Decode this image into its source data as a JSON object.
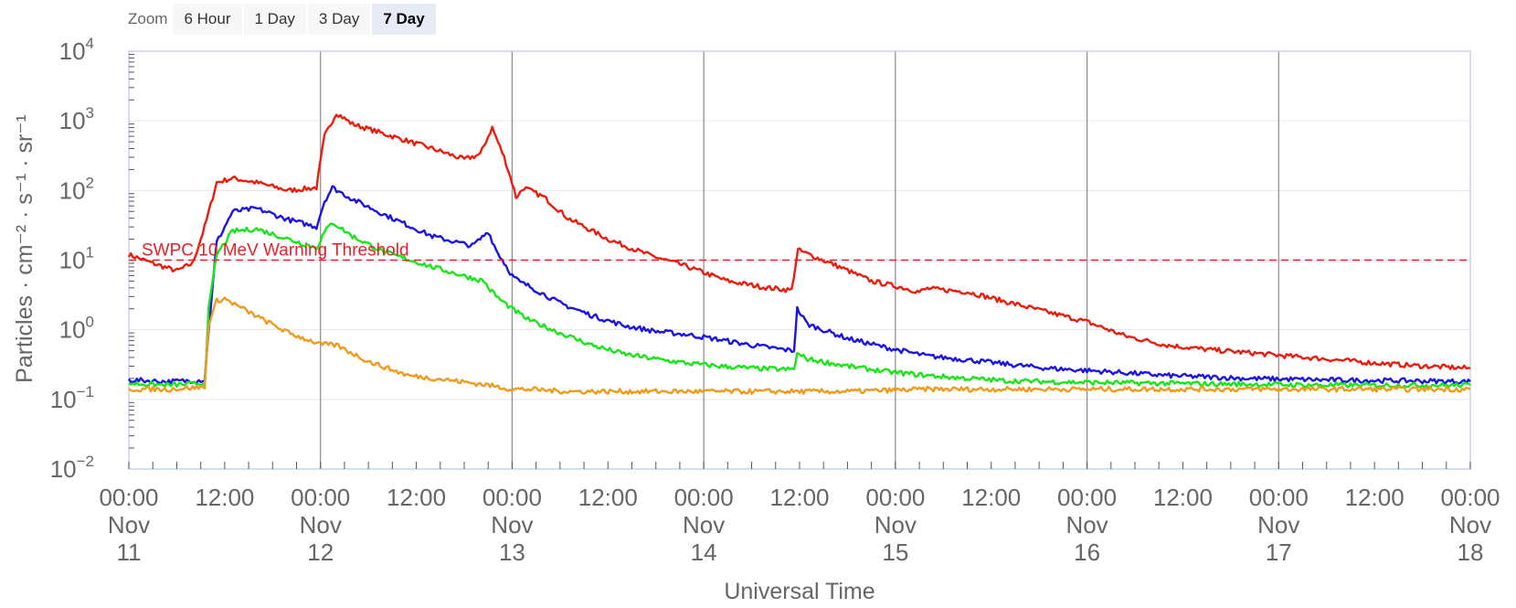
{
  "zoom": {
    "label": "Zoom",
    "buttons": [
      "6 Hour",
      "1 Day",
      "3 Day",
      "7 Day"
    ],
    "selected": "7 Day"
  },
  "chart_data": {
    "type": "line",
    "title": "",
    "xlabel": "Universal Time",
    "ylabel": "Particles · cm⁻² · s⁻¹ · sr⁻¹",
    "y_scale": "log",
    "ylim": [
      0.01,
      10000
    ],
    "y_ticks": [
      {
        "base": "10",
        "exp": "4"
      },
      {
        "base": "10",
        "exp": "3"
      },
      {
        "base": "10",
        "exp": "2"
      },
      {
        "base": "10",
        "exp": "1"
      },
      {
        "base": "10",
        "exp": "0"
      },
      {
        "base": "10",
        "exp": "−1"
      },
      {
        "base": "10",
        "exp": "−2"
      }
    ],
    "xlim_hours": [
      0,
      168
    ],
    "x_ticks": [
      {
        "time": "00:00",
        "month": "Nov",
        "day": "11"
      },
      {
        "time": "12:00",
        "month": "",
        "day": ""
      },
      {
        "time": "00:00",
        "month": "Nov",
        "day": "12"
      },
      {
        "time": "12:00",
        "month": "",
        "day": ""
      },
      {
        "time": "00:00",
        "month": "Nov",
        "day": "13"
      },
      {
        "time": "12:00",
        "month": "",
        "day": ""
      },
      {
        "time": "00:00",
        "month": "Nov",
        "day": "14"
      },
      {
        "time": "12:00",
        "month": "",
        "day": ""
      },
      {
        "time": "00:00",
        "month": "Nov",
        "day": "15"
      },
      {
        "time": "12:00",
        "month": "",
        "day": ""
      },
      {
        "time": "00:00",
        "month": "Nov",
        "day": "16"
      },
      {
        "time": "12:00",
        "month": "",
        "day": ""
      },
      {
        "time": "00:00",
        "month": "Nov",
        "day": "17"
      },
      {
        "time": "12:00",
        "month": "",
        "day": ""
      },
      {
        "time": "00:00",
        "month": "Nov",
        "day": "18"
      }
    ],
    "threshold": {
      "label": "SWPC 10 MeV Warning Threshold",
      "value": 10,
      "color": "#e8202a"
    },
    "series": [
      {
        "color": "#ee1c0d",
        "points": [
          [
            0,
            12
          ],
          [
            3,
            9
          ],
          [
            6,
            7
          ],
          [
            8,
            9
          ],
          [
            9.5,
            30
          ],
          [
            11,
            130
          ],
          [
            13,
            150
          ],
          [
            16,
            130
          ],
          [
            20,
            100
          ],
          [
            23.5,
            110
          ],
          [
            24.5,
            600
          ],
          [
            26,
            1300
          ],
          [
            28,
            900
          ],
          [
            32,
            650
          ],
          [
            38,
            400
          ],
          [
            42,
            280
          ],
          [
            44,
            330
          ],
          [
            45.5,
            800
          ],
          [
            47,
            300
          ],
          [
            48,
            130
          ],
          [
            48.5,
            80
          ],
          [
            49.5,
            110
          ],
          [
            52,
            80
          ],
          [
            55,
            40
          ],
          [
            60,
            20
          ],
          [
            65,
            12
          ],
          [
            70,
            8
          ],
          [
            75,
            5
          ],
          [
            80,
            4
          ],
          [
            83,
            3.7
          ],
          [
            83.8,
            14
          ],
          [
            86,
            11
          ],
          [
            89,
            8
          ],
          [
            93,
            5
          ],
          [
            97,
            4
          ],
          [
            99,
            3.5
          ],
          [
            100,
            3.9
          ],
          [
            105,
            3.5
          ],
          [
            110,
            2.5
          ],
          [
            115,
            1.8
          ],
          [
            120,
            1.3
          ],
          [
            125,
            0.8
          ],
          [
            130,
            0.6
          ],
          [
            135,
            0.52
          ],
          [
            140,
            0.47
          ],
          [
            145,
            0.42
          ],
          [
            150,
            0.38
          ],
          [
            155,
            0.34
          ],
          [
            160,
            0.31
          ],
          [
            165,
            0.29
          ],
          [
            168,
            0.28
          ]
        ]
      },
      {
        "color": "#1c13e6",
        "points": [
          [
            0,
            0.19
          ],
          [
            5,
            0.18
          ],
          [
            9.5,
            0.19
          ],
          [
            10,
            1
          ],
          [
            11,
            18
          ],
          [
            13,
            50
          ],
          [
            16,
            55
          ],
          [
            20,
            38
          ],
          [
            23.5,
            30
          ],
          [
            24.5,
            70
          ],
          [
            25.5,
            110
          ],
          [
            28,
            75
          ],
          [
            32,
            45
          ],
          [
            38,
            22
          ],
          [
            43,
            16
          ],
          [
            44,
            20
          ],
          [
            45,
            26
          ],
          [
            46,
            14
          ],
          [
            48,
            6
          ],
          [
            49,
            4.8
          ],
          [
            50,
            4.3
          ],
          [
            54,
            2.4
          ],
          [
            58,
            1.6
          ],
          [
            62,
            1.15
          ],
          [
            66,
            0.95
          ],
          [
            70,
            0.85
          ],
          [
            74,
            0.72
          ],
          [
            78,
            0.6
          ],
          [
            82,
            0.52
          ],
          [
            83.3,
            0.5
          ],
          [
            83.7,
            2.0
          ],
          [
            85,
            1.2
          ],
          [
            90,
            0.75
          ],
          [
            95,
            0.55
          ],
          [
            100,
            0.42
          ],
          [
            105,
            0.37
          ],
          [
            110,
            0.32
          ],
          [
            115,
            0.28
          ],
          [
            120,
            0.26
          ],
          [
            125,
            0.24
          ],
          [
            130,
            0.22
          ],
          [
            135,
            0.21
          ],
          [
            140,
            0.2
          ],
          [
            150,
            0.19
          ],
          [
            160,
            0.185
          ],
          [
            168,
            0.18
          ]
        ]
      },
      {
        "color": "#19e619",
        "points": [
          [
            0,
            0.17
          ],
          [
            5,
            0.16
          ],
          [
            9.5,
            0.17
          ],
          [
            10,
            2
          ],
          [
            11,
            12
          ],
          [
            13,
            26
          ],
          [
            16,
            28
          ],
          [
            20,
            20
          ],
          [
            23.5,
            15
          ],
          [
            24.5,
            25
          ],
          [
            25.5,
            35
          ],
          [
            28,
            22
          ],
          [
            32,
            13
          ],
          [
            38,
            8
          ],
          [
            43,
            5.5
          ],
          [
            44.5,
            5
          ],
          [
            45,
            4
          ],
          [
            46.5,
            2.7
          ],
          [
            48,
            2
          ],
          [
            50,
            1.4
          ],
          [
            54,
            0.9
          ],
          [
            58,
            0.6
          ],
          [
            62,
            0.45
          ],
          [
            66,
            0.38
          ],
          [
            70,
            0.33
          ],
          [
            74,
            0.3
          ],
          [
            78,
            0.28
          ],
          [
            82,
            0.27
          ],
          [
            83.3,
            0.27
          ],
          [
            83.7,
            0.45
          ],
          [
            85,
            0.38
          ],
          [
            90,
            0.3
          ],
          [
            95,
            0.25
          ],
          [
            100,
            0.22
          ],
          [
            105,
            0.2
          ],
          [
            110,
            0.185
          ],
          [
            120,
            0.175
          ],
          [
            130,
            0.17
          ],
          [
            140,
            0.165
          ],
          [
            150,
            0.16
          ],
          [
            160,
            0.16
          ],
          [
            168,
            0.16
          ]
        ]
      },
      {
        "color": "#f19a1d",
        "points": [
          [
            0,
            0.14
          ],
          [
            5,
            0.14
          ],
          [
            9.5,
            0.15
          ],
          [
            10,
            1.2
          ],
          [
            11,
            2.6
          ],
          [
            12,
            2.8
          ],
          [
            15,
            1.8
          ],
          [
            20,
            0.9
          ],
          [
            24,
            0.62
          ],
          [
            26,
            0.6
          ],
          [
            30,
            0.35
          ],
          [
            35,
            0.22
          ],
          [
            40,
            0.19
          ],
          [
            45,
            0.16
          ],
          [
            48,
            0.14
          ],
          [
            50,
            0.14
          ],
          [
            55,
            0.13
          ],
          [
            60,
            0.13
          ],
          [
            70,
            0.13
          ],
          [
            80,
            0.13
          ],
          [
            90,
            0.13
          ],
          [
            100,
            0.14
          ],
          [
            110,
            0.14
          ],
          [
            120,
            0.14
          ],
          [
            130,
            0.14
          ],
          [
            140,
            0.14
          ],
          [
            150,
            0.14
          ],
          [
            160,
            0.14
          ],
          [
            168,
            0.14
          ]
        ]
      }
    ]
  }
}
